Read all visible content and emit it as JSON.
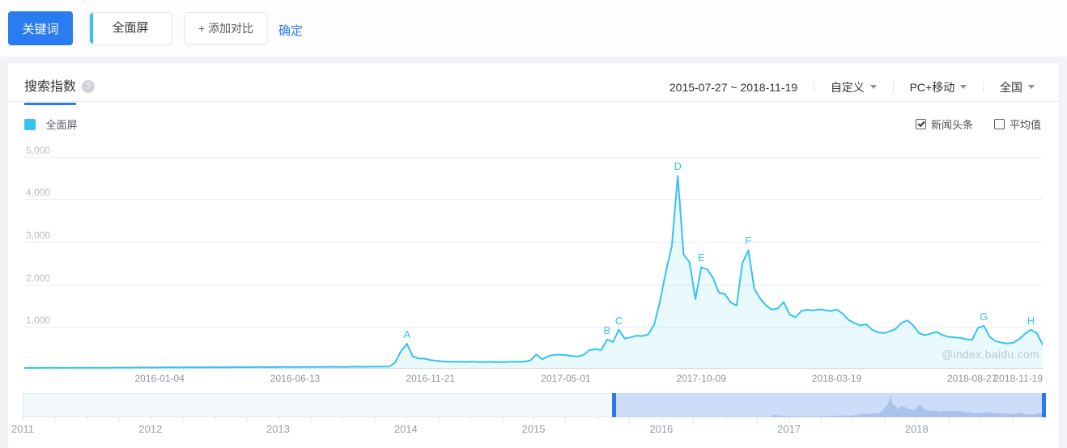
{
  "colors": {
    "brand_blue": "#2b7cf0",
    "series_cyan": "#35c3f3",
    "area_fill": "rgba(53,195,243,0.10)",
    "timeline_selection": "#cbddf8",
    "timeline_handle": "#2878ef",
    "timeline_mini_fill": "rgba(80,125,190,0.28)"
  },
  "toolbar": {
    "keyword_button": "关键词",
    "keyword_chip": "全面屏",
    "add_compare": "+ 添加对比",
    "confirm": "确定"
  },
  "panel": {
    "tab": "搜索指数",
    "help_icon": "?",
    "date_range": "2015-07-27 ~ 2018-11-19",
    "range_mode": "自定义",
    "platform": "PC+移动",
    "region": "全国",
    "legend": {
      "label": "全面屏",
      "color": "#35c3f3"
    },
    "options": [
      {
        "label": "新闻头条",
        "checked": true
      },
      {
        "label": "平均值",
        "checked": false
      }
    ],
    "watermark": "@index.baidu.com"
  },
  "chart_data": {
    "type": "area",
    "series_name": "全面屏",
    "x_start": "2015-07-27",
    "x_end": "2018-11-19",
    "interval": "weekly",
    "ylim": [
      0,
      5260
    ],
    "grid": true,
    "y_ticks": [
      {
        "value": 1000,
        "label": "1,000"
      },
      {
        "value": 2000,
        "label": "2,000"
      },
      {
        "value": 3000,
        "label": "3,000"
      },
      {
        "value": 4000,
        "label": "4,000"
      },
      {
        "value": 5000,
        "label": "5,000"
      }
    ],
    "x_tick_labels": [
      {
        "label": "2016-01-04",
        "index": 23
      },
      {
        "label": "2016-06-13",
        "index": 46
      },
      {
        "label": "2016-11-21",
        "index": 69
      },
      {
        "label": "2017-05-01",
        "index": 92
      },
      {
        "label": "2017-10-09",
        "index": 115
      },
      {
        "label": "2018-03-19",
        "index": 138
      },
      {
        "label": "2018-08-27",
        "index": 161
      },
      {
        "label": "2018-11-19",
        "index": 173
      }
    ],
    "markers": [
      {
        "label": "A",
        "index": 65,
        "value": 600
      },
      {
        "label": "B",
        "index": 99,
        "value": 700
      },
      {
        "label": "C",
        "index": 101,
        "value": 930
      },
      {
        "label": "D",
        "index": 111,
        "value": 4550
      },
      {
        "label": "E",
        "index": 115,
        "value": 2400
      },
      {
        "label": "F",
        "index": 123,
        "value": 2800
      },
      {
        "label": "G",
        "index": 163,
        "value": 1020
      },
      {
        "label": "H",
        "index": 171,
        "value": 930
      }
    ],
    "values": [
      30,
      32,
      31,
      33,
      35,
      34,
      32,
      33,
      36,
      35,
      34,
      36,
      38,
      37,
      36,
      38,
      40,
      39,
      38,
      40,
      42,
      41,
      40,
      42,
      44,
      43,
      42,
      44,
      46,
      45,
      44,
      46,
      48,
      47,
      46,
      48,
      50,
      49,
      48,
      50,
      52,
      51,
      50,
      52,
      54,
      53,
      52,
      54,
      56,
      55,
      54,
      56,
      58,
      57,
      56,
      58,
      60,
      59,
      58,
      60,
      62,
      61,
      63,
      160,
      430,
      600,
      300,
      255,
      250,
      215,
      200,
      185,
      180,
      175,
      178,
      172,
      176,
      172,
      168,
      175,
      170,
      166,
      172,
      178,
      174,
      180,
      210,
      350,
      230,
      310,
      340,
      345,
      330,
      310,
      300,
      335,
      450,
      470,
      450,
      700,
      640,
      930,
      720,
      750,
      790,
      780,
      820,
      1050,
      1600,
      2300,
      2900,
      4550,
      2700,
      2520,
      1650,
      2400,
      2350,
      2150,
      1800,
      1770,
      1570,
      1500,
      2500,
      2800,
      1900,
      1660,
      1500,
      1400,
      1430,
      1580,
      1290,
      1220,
      1370,
      1400,
      1380,
      1410,
      1390,
      1370,
      1400,
      1310,
      1160,
      1090,
      1030,
      1060,
      930,
      870,
      850,
      890,
      950,
      1090,
      1150,
      1030,
      850,
      800,
      840,
      880,
      800,
      760,
      750,
      740,
      705,
      690,
      970,
      1020,
      760,
      660,
      625,
      605,
      625,
      705,
      835,
      930,
      845,
      580
    ]
  },
  "timeline": {
    "years": [
      "2011",
      "2012",
      "2013",
      "2014",
      "2015",
      "2016",
      "2017",
      "2018"
    ],
    "selection": {
      "start_frac": 0.5776,
      "end_frac": 1.0
    }
  }
}
